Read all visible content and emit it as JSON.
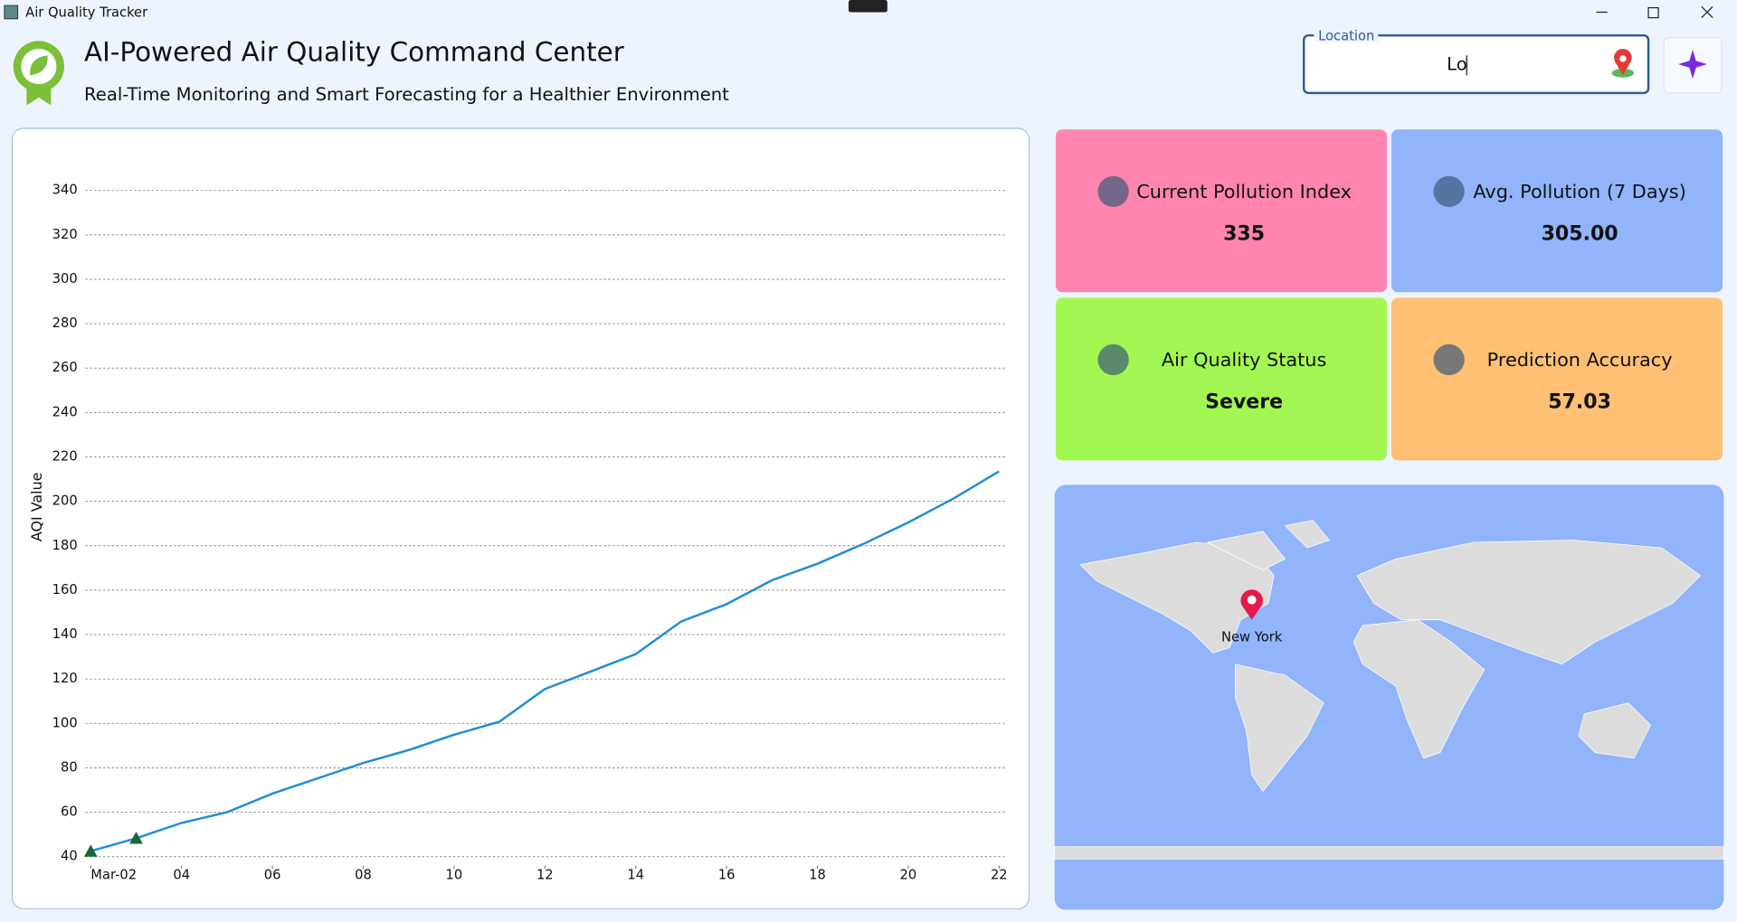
{
  "window": {
    "title": "Air Quality Tracker"
  },
  "header": {
    "title": "AI-Powered Air Quality Command Center",
    "subtitle": "Real-Time Monitoring and Smart Forecasting for a Healthier Environment"
  },
  "location": {
    "label": "Location",
    "value": "Lo"
  },
  "cards": [
    {
      "label": "Current Pollution Index",
      "value": "335",
      "color": "#ff85b0"
    },
    {
      "label": "Avg. Pollution (7 Days)",
      "value": "305.00",
      "color": "#91b4fb"
    },
    {
      "label": "Air Quality Status",
      "value": "Severe",
      "color": "#a3f752"
    },
    {
      "label": "Prediction Accuracy",
      "value": "57.03",
      "color": "#ffc074"
    }
  ],
  "map": {
    "marker_label": "New York"
  },
  "chart_data": {
    "type": "line",
    "y_label": "AQI Value",
    "x": [
      2,
      3,
      4,
      5,
      6,
      7,
      8,
      9,
      10,
      11,
      12,
      13,
      14,
      15,
      16,
      17,
      18,
      19,
      20,
      21,
      22
    ],
    "series": [
      {
        "color": "#1f8dd6",
        "values": [
          42.5,
          48.3,
          55.2,
          60,
          68.4,
          75.3,
          82.2,
          88,
          94.9,
          100.8,
          115.5,
          123.3,
          131.2,
          145.9,
          153.7,
          164.5,
          171.9,
          180.7,
          190.5,
          201.3,
          213.5
        ]
      },
      {
        "color": "#17653a",
        "marker": "triangle",
        "values": [
          42.5,
          48.3,
          null,
          null,
          null,
          null,
          null,
          null,
          null,
          null,
          null,
          null,
          null,
          null,
          null,
          null,
          null,
          null,
          null,
          null,
          null
        ]
      }
    ],
    "xlim": [
      1.88,
      22.15
    ],
    "xticks": [
      {
        "value": 2,
        "label": "Mar-02"
      },
      {
        "value": 4,
        "label": "04"
      },
      {
        "value": 6,
        "label": "06"
      },
      {
        "value": 8,
        "label": "08"
      },
      {
        "value": 10,
        "label": "10"
      },
      {
        "value": 12,
        "label": "12"
      },
      {
        "value": 14,
        "label": "14"
      },
      {
        "value": 16,
        "label": "16"
      },
      {
        "value": 18,
        "label": "18"
      },
      {
        "value": 20,
        "label": "20"
      },
      22
    ],
    "ylim": [
      36,
      350
    ],
    "yticks": [
      40,
      60,
      80,
      100,
      120,
      140,
      160,
      180,
      200,
      220,
      240,
      260,
      280,
      300,
      320,
      340
    ],
    "grid": true
  }
}
